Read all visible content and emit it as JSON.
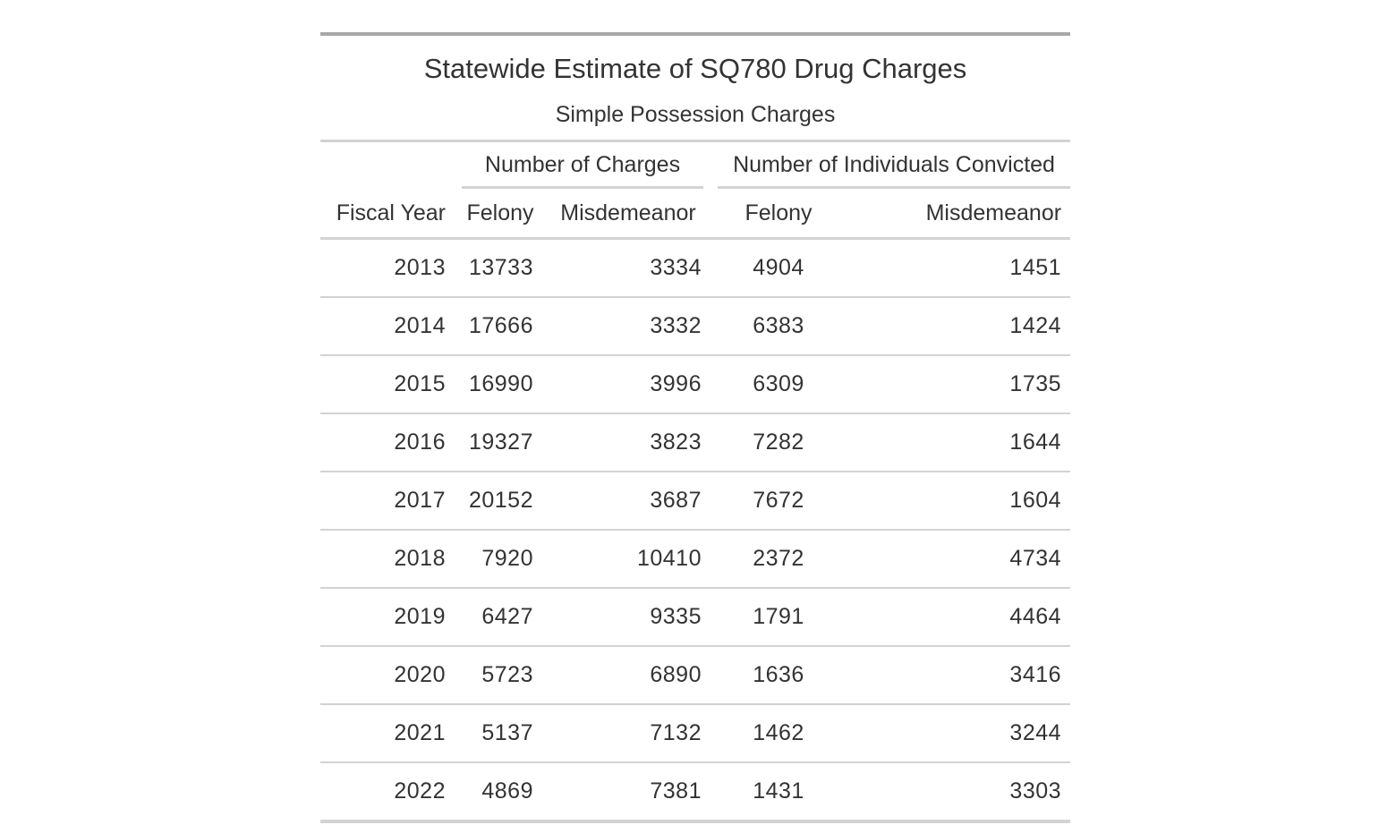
{
  "table": {
    "title": "Statewide Estimate of SQ780 Drug Charges",
    "subtitle": "Simple Possession Charges",
    "spanners": {
      "charges": "Number of Charges",
      "individuals": "Number of Individuals Convicted"
    },
    "columns": {
      "year": "Fiscal Year",
      "charges_felony": "Felony",
      "charges_misdemeanor": "Misdemeanor",
      "individuals_felony": "Felony",
      "individuals_misdemeanor": "Misdemeanor"
    },
    "rows": [
      {
        "year": "2013",
        "charges_felony": "13733",
        "charges_misdemeanor": "3334",
        "individuals_felony": "4904",
        "individuals_misdemeanor": "1451"
      },
      {
        "year": "2014",
        "charges_felony": "17666",
        "charges_misdemeanor": "3332",
        "individuals_felony": "6383",
        "individuals_misdemeanor": "1424"
      },
      {
        "year": "2015",
        "charges_felony": "16990",
        "charges_misdemeanor": "3996",
        "individuals_felony": "6309",
        "individuals_misdemeanor": "1735"
      },
      {
        "year": "2016",
        "charges_felony": "19327",
        "charges_misdemeanor": "3823",
        "individuals_felony": "7282",
        "individuals_misdemeanor": "1644"
      },
      {
        "year": "2017",
        "charges_felony": "20152",
        "charges_misdemeanor": "3687",
        "individuals_felony": "7672",
        "individuals_misdemeanor": "1604"
      },
      {
        "year": "2018",
        "charges_felony": "7920",
        "charges_misdemeanor": "10410",
        "individuals_felony": "2372",
        "individuals_misdemeanor": "4734"
      },
      {
        "year": "2019",
        "charges_felony": "6427",
        "charges_misdemeanor": "9335",
        "individuals_felony": "1791",
        "individuals_misdemeanor": "4464"
      },
      {
        "year": "2020",
        "charges_felony": "5723",
        "charges_misdemeanor": "6890",
        "individuals_felony": "1636",
        "individuals_misdemeanor": "3416"
      },
      {
        "year": "2021",
        "charges_felony": "5137",
        "charges_misdemeanor": "7132",
        "individuals_felony": "1462",
        "individuals_misdemeanor": "3244"
      },
      {
        "year": "2022",
        "charges_felony": "4869",
        "charges_misdemeanor": "7381",
        "individuals_felony": "1431",
        "individuals_misdemeanor": "3303"
      }
    ]
  }
}
